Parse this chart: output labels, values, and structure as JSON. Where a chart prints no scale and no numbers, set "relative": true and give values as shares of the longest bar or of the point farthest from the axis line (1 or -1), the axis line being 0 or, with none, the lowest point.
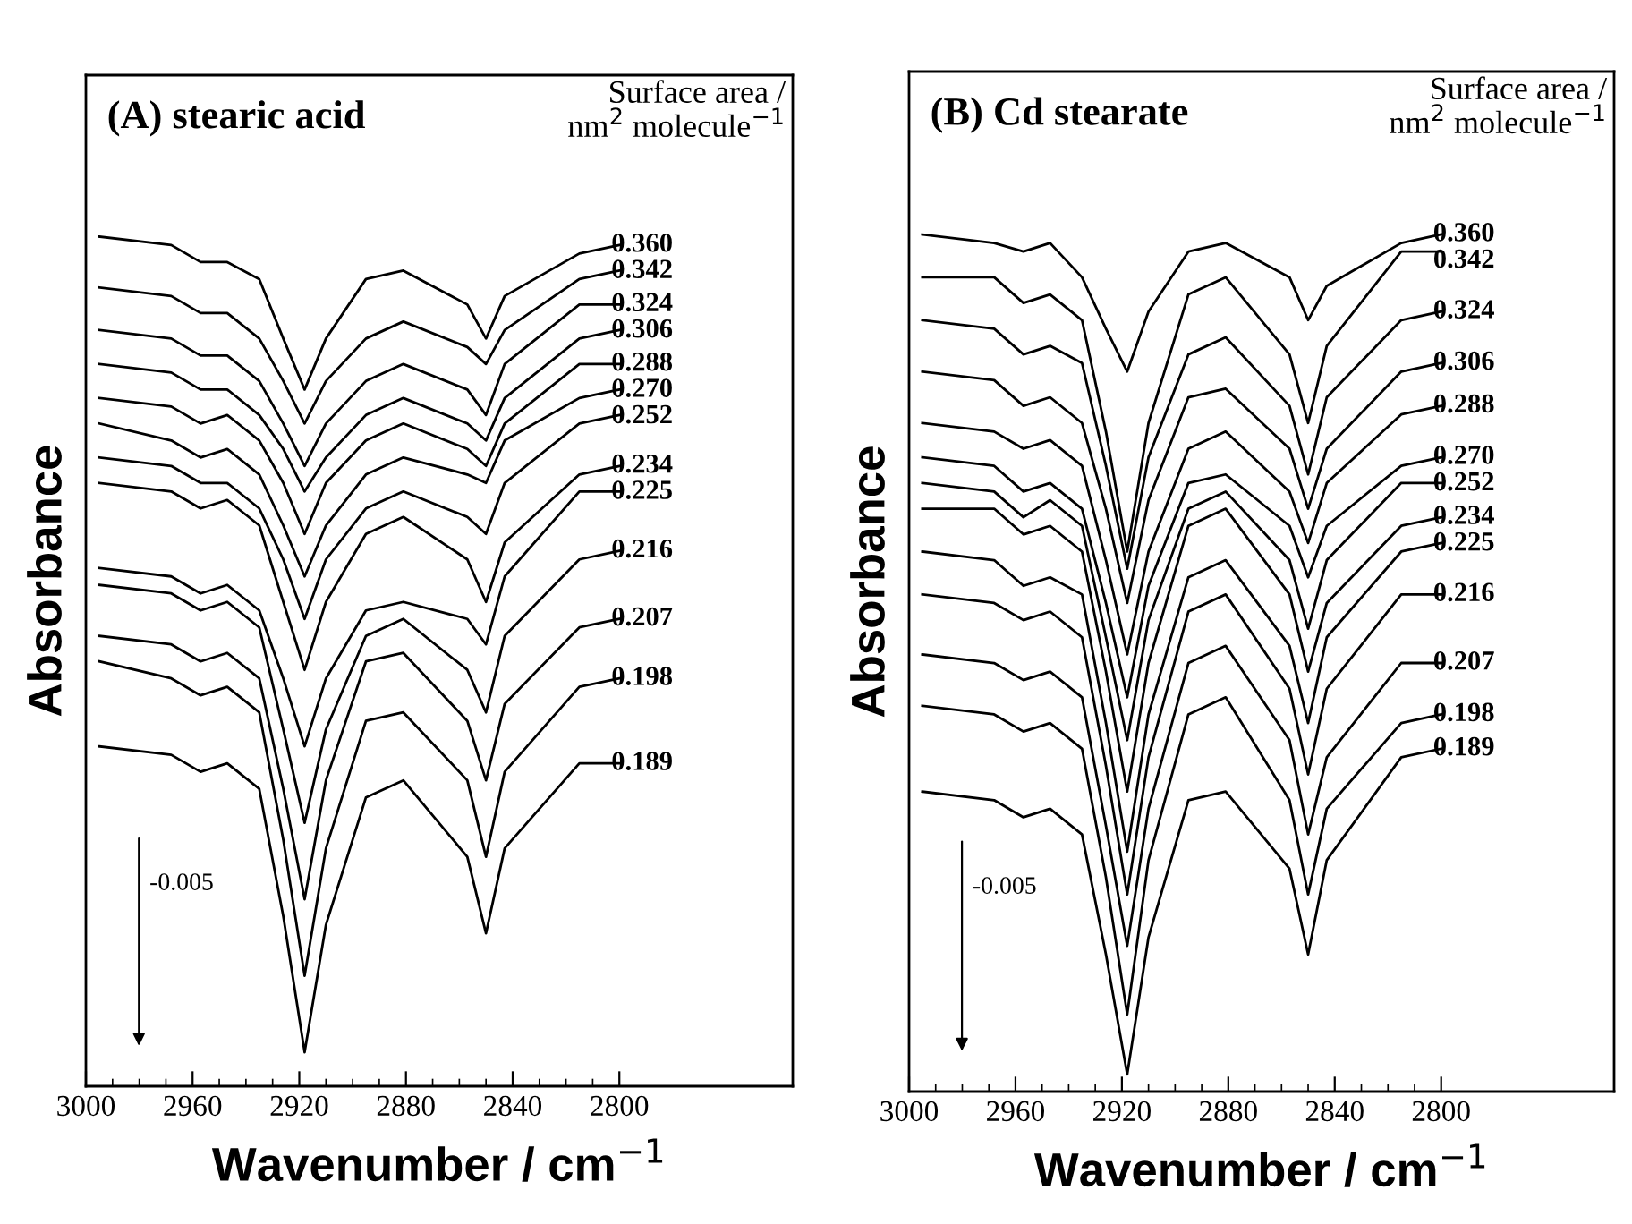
{
  "chart_data": [
    {
      "type": "line",
      "title": "(A) stearic acid",
      "xlabel": "Wavenumber / cm$^{−1}$",
      "ylabel": "Absorbance",
      "legend_title": "Surface area /\nnm$^{2}$ molecule$^{−1}$",
      "relative": true,
      "xlim": [
        3000,
        2735
      ],
      "xticks": [
        3000,
        2960,
        2920,
        2880,
        2840,
        2800
      ],
      "annotations": [
        "-0.005"
      ],
      "x": [
        2995,
        2968,
        2957,
        2947,
        2935,
        2926,
        2918,
        2910,
        2895,
        2881,
        2857,
        2850,
        2843,
        2815,
        2800
      ],
      "series": [
        {
          "name": "0.360",
          "color": "#000000",
          "values": [
            1.0,
            0.99,
            0.97,
            0.97,
            0.95,
            0.88,
            0.82,
            0.88,
            0.95,
            0.96,
            0.92,
            0.88,
            0.93,
            0.98,
            0.99
          ]
        },
        {
          "name": "0.342",
          "color": "#000000",
          "values": [
            0.94,
            0.93,
            0.91,
            0.91,
            0.88,
            0.83,
            0.78,
            0.83,
            0.88,
            0.9,
            0.87,
            0.85,
            0.89,
            0.95,
            0.96
          ]
        },
        {
          "name": "0.324",
          "color": "#000000",
          "values": [
            0.89,
            0.88,
            0.86,
            0.86,
            0.83,
            0.78,
            0.73,
            0.78,
            0.83,
            0.85,
            0.82,
            0.79,
            0.85,
            0.92,
            0.92
          ]
        },
        {
          "name": "0.306",
          "color": "#000000",
          "values": [
            0.85,
            0.84,
            0.82,
            0.82,
            0.79,
            0.75,
            0.7,
            0.74,
            0.79,
            0.81,
            0.78,
            0.76,
            0.81,
            0.88,
            0.89
          ]
        },
        {
          "name": "0.288",
          "color": "#000000",
          "values": [
            0.81,
            0.8,
            0.78,
            0.79,
            0.76,
            0.71,
            0.65,
            0.71,
            0.76,
            0.78,
            0.75,
            0.73,
            0.78,
            0.85,
            0.85
          ]
        },
        {
          "name": "0.270",
          "color": "#000000",
          "values": [
            0.78,
            0.76,
            0.74,
            0.75,
            0.72,
            0.66,
            0.6,
            0.66,
            0.72,
            0.74,
            0.72,
            0.71,
            0.76,
            0.81,
            0.82
          ]
        },
        {
          "name": "0.252",
          "color": "#000000",
          "values": [
            0.74,
            0.73,
            0.71,
            0.71,
            0.68,
            0.62,
            0.55,
            0.62,
            0.68,
            0.7,
            0.67,
            0.65,
            0.71,
            0.78,
            0.79
          ]
        },
        {
          "name": "0.234",
          "color": "#000000",
          "values": [
            0.71,
            0.7,
            0.68,
            0.69,
            0.66,
            0.57,
            0.49,
            0.57,
            0.65,
            0.67,
            0.62,
            0.57,
            0.64,
            0.72,
            0.73
          ]
        },
        {
          "name": "0.225",
          "color": "#000000",
          "values": [
            0.61,
            0.6,
            0.58,
            0.59,
            0.56,
            0.48,
            0.4,
            0.48,
            0.56,
            0.57,
            0.55,
            0.52,
            0.6,
            0.7,
            0.7
          ]
        },
        {
          "name": "0.216",
          "color": "#000000",
          "values": [
            0.59,
            0.58,
            0.56,
            0.57,
            0.54,
            0.42,
            0.31,
            0.42,
            0.53,
            0.55,
            0.49,
            0.44,
            0.53,
            0.62,
            0.63
          ]
        },
        {
          "name": "0.207",
          "color": "#000000",
          "values": [
            0.53,
            0.52,
            0.5,
            0.51,
            0.48,
            0.35,
            0.22,
            0.36,
            0.5,
            0.51,
            0.43,
            0.36,
            0.45,
            0.54,
            0.55
          ]
        },
        {
          "name": "0.198",
          "color": "#000000",
          "values": [
            0.5,
            0.48,
            0.46,
            0.47,
            0.44,
            0.29,
            0.13,
            0.28,
            0.43,
            0.44,
            0.36,
            0.27,
            0.37,
            0.47,
            0.48
          ]
        },
        {
          "name": "0.189",
          "color": "#000000",
          "values": [
            0.4,
            0.39,
            0.37,
            0.38,
            0.35,
            0.2,
            0.04,
            0.19,
            0.34,
            0.36,
            0.27,
            0.18,
            0.28,
            0.38,
            0.38
          ]
        }
      ]
    },
    {
      "type": "line",
      "title": "(B) Cd stearate",
      "xlabel": "Wavenumber / cm$^{−1}$",
      "ylabel": "Absorbance",
      "legend_title": "Surface area /\nnm$^{2}$ molecule$^{−1}$",
      "relative": true,
      "xlim": [
        3000,
        2735
      ],
      "xticks": [
        3000,
        2960,
        2920,
        2880,
        2840,
        2800
      ],
      "annotations": [
        "-0.005"
      ],
      "x": [
        2995,
        2968,
        2957,
        2947,
        2935,
        2926,
        2918,
        2910,
        2895,
        2881,
        2857,
        2850,
        2843,
        2815,
        2800
      ],
      "series": [
        {
          "name": "0.360",
          "color": "#000000",
          "values": [
            1.0,
            0.99,
            0.98,
            0.99,
            0.95,
            0.89,
            0.84,
            0.91,
            0.98,
            0.99,
            0.95,
            0.9,
            0.94,
            0.99,
            1.0
          ]
        },
        {
          "name": "0.342",
          "color": "#000000",
          "values": [
            0.95,
            0.95,
            0.92,
            0.93,
            0.9,
            0.77,
            0.63,
            0.78,
            0.93,
            0.95,
            0.86,
            0.78,
            0.87,
            0.98,
            0.98
          ]
        },
        {
          "name": "0.324",
          "color": "#000000",
          "values": [
            0.9,
            0.89,
            0.86,
            0.87,
            0.85,
            0.73,
            0.61,
            0.74,
            0.86,
            0.88,
            0.8,
            0.72,
            0.81,
            0.9,
            0.91
          ]
        },
        {
          "name": "0.306",
          "color": "#000000",
          "values": [
            0.84,
            0.83,
            0.8,
            0.81,
            0.78,
            0.68,
            0.57,
            0.69,
            0.81,
            0.82,
            0.75,
            0.68,
            0.75,
            0.84,
            0.85
          ]
        },
        {
          "name": "0.288",
          "color": "#000000",
          "values": [
            0.78,
            0.77,
            0.75,
            0.76,
            0.73,
            0.62,
            0.51,
            0.63,
            0.75,
            0.77,
            0.7,
            0.64,
            0.71,
            0.79,
            0.8
          ]
        },
        {
          "name": "0.270",
          "color": "#000000",
          "values": [
            0.74,
            0.73,
            0.7,
            0.71,
            0.68,
            0.57,
            0.46,
            0.59,
            0.71,
            0.72,
            0.66,
            0.6,
            0.66,
            0.73,
            0.74
          ]
        },
        {
          "name": "0.252",
          "color": "#000000",
          "values": [
            0.71,
            0.7,
            0.67,
            0.69,
            0.66,
            0.53,
            0.41,
            0.55,
            0.68,
            0.7,
            0.62,
            0.54,
            0.62,
            0.71,
            0.71
          ]
        },
        {
          "name": "0.234",
          "color": "#000000",
          "values": [
            0.68,
            0.68,
            0.65,
            0.66,
            0.63,
            0.49,
            0.35,
            0.5,
            0.66,
            0.68,
            0.58,
            0.49,
            0.57,
            0.66,
            0.67
          ]
        },
        {
          "name": "0.225",
          "color": "#000000",
          "values": [
            0.63,
            0.62,
            0.59,
            0.6,
            0.58,
            0.43,
            0.28,
            0.44,
            0.6,
            0.62,
            0.52,
            0.43,
            0.53,
            0.63,
            0.64
          ]
        },
        {
          "name": "0.216",
          "color": "#000000",
          "values": [
            0.58,
            0.57,
            0.55,
            0.56,
            0.53,
            0.38,
            0.23,
            0.39,
            0.56,
            0.58,
            0.47,
            0.37,
            0.47,
            0.58,
            0.58
          ]
        },
        {
          "name": "0.207",
          "color": "#000000",
          "values": [
            0.51,
            0.5,
            0.48,
            0.49,
            0.46,
            0.31,
            0.17,
            0.33,
            0.5,
            0.52,
            0.41,
            0.3,
            0.39,
            0.5,
            0.5
          ]
        },
        {
          "name": "0.198",
          "color": "#000000",
          "values": [
            0.45,
            0.44,
            0.42,
            0.43,
            0.4,
            0.25,
            0.09,
            0.27,
            0.44,
            0.46,
            0.34,
            0.23,
            0.33,
            0.43,
            0.44
          ]
        },
        {
          "name": "0.189",
          "color": "#000000",
          "values": [
            0.35,
            0.34,
            0.32,
            0.33,
            0.3,
            0.16,
            0.02,
            0.18,
            0.34,
            0.35,
            0.26,
            0.16,
            0.27,
            0.39,
            0.4
          ]
        }
      ]
    }
  ]
}
